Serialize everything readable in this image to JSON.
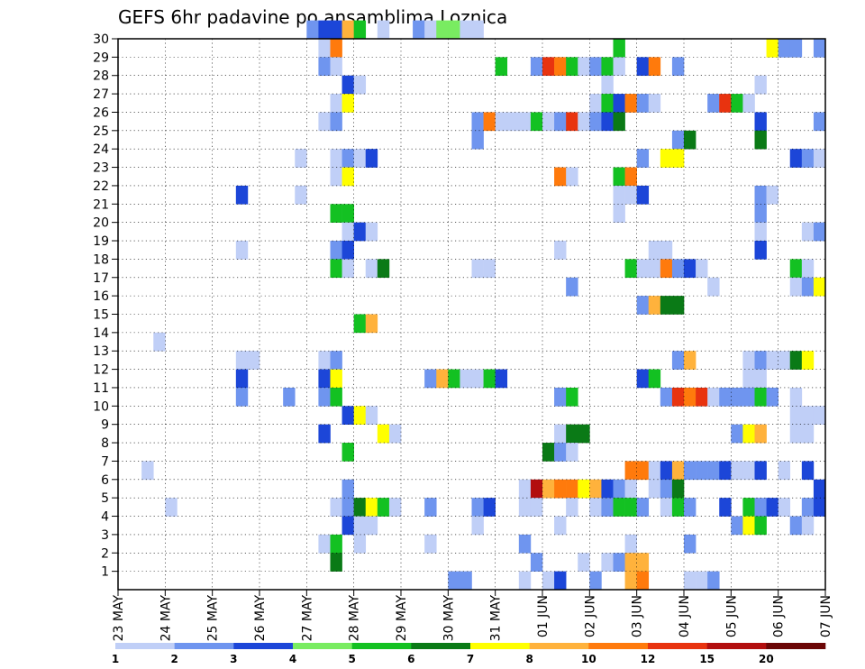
{
  "chart_data": {
    "type": "heatmap",
    "title": "GEFS 6hr padavine po ansamblima Loznica",
    "xlabel": "",
    "ylabel": "",
    "x_tick_labels": [
      "23 MAY",
      "24 MAY",
      "25 MAY",
      "26 MAY",
      "27 MAY",
      "28 MAY",
      "29 MAY",
      "30 MAY",
      "31 MAY",
      "01 JUN",
      "02 JUN",
      "03 JUN",
      "04 JUN",
      "05 JUN",
      "06 JUN",
      "07 JUN"
    ],
    "y_tick_labels": [
      "1",
      "2",
      "3",
      "4",
      "5",
      "6",
      "7",
      "8",
      "9",
      "10",
      "11",
      "12",
      "13",
      "14",
      "15",
      "16",
      "17",
      "18",
      "19",
      "20",
      "21",
      "22",
      "23",
      "24",
      "25",
      "26",
      "27",
      "28",
      "29",
      "30"
    ],
    "xlim": [
      0,
      60
    ],
    "ylim": [
      0,
      30
    ],
    "x_unit": "6-hour steps from 23 MAY 00Z",
    "grid": true,
    "legend": {
      "placement": "bottom",
      "labels": [
        "1",
        "2",
        "3",
        "4",
        "5",
        "6",
        "7",
        "8",
        "10",
        "12",
        "15",
        "20"
      ],
      "colors": [
        "#c0cff7",
        "#6f95ef",
        "#1c46d8",
        "#79ec61",
        "#13c122",
        "#0a7a16",
        "#ffff00",
        "#ffb23c",
        "#ff7a0c",
        "#e8330f",
        "#b20e0e",
        "#6b0606"
      ]
    },
    "cells": [
      [
        16,
        30,
        2
      ],
      [
        17,
        30,
        3
      ],
      [
        18,
        30,
        3
      ],
      [
        19,
        30,
        8
      ],
      [
        20,
        30,
        5
      ],
      [
        22,
        30,
        1
      ],
      [
        25,
        30,
        2
      ],
      [
        26,
        30,
        1
      ],
      [
        27,
        30,
        4
      ],
      [
        28,
        30,
        4
      ],
      [
        29,
        30,
        1
      ],
      [
        30,
        30,
        1
      ],
      [
        17,
        29,
        1
      ],
      [
        18,
        29,
        10
      ],
      [
        42,
        29,
        5
      ],
      [
        55,
        29,
        7
      ],
      [
        56,
        29,
        2
      ],
      [
        57,
        29,
        2
      ],
      [
        59,
        29,
        2
      ],
      [
        17,
        28,
        2
      ],
      [
        18,
        28,
        1
      ],
      [
        32,
        28,
        5
      ],
      [
        35,
        28,
        2
      ],
      [
        36,
        28,
        14
      ],
      [
        37,
        28,
        10
      ],
      [
        38,
        28,
        5
      ],
      [
        39,
        28,
        1
      ],
      [
        40,
        28,
        2
      ],
      [
        41,
        28,
        5
      ],
      [
        42,
        28,
        1
      ],
      [
        44,
        28,
        3
      ],
      [
        45,
        28,
        10
      ],
      [
        47,
        28,
        2
      ],
      [
        19,
        27,
        3
      ],
      [
        20,
        27,
        1
      ],
      [
        41,
        27,
        1
      ],
      [
        54,
        27,
        1
      ],
      [
        18,
        26,
        1
      ],
      [
        19,
        26,
        7
      ],
      [
        40,
        26,
        1
      ],
      [
        41,
        26,
        5
      ],
      [
        42,
        26,
        3
      ],
      [
        43,
        26,
        10
      ],
      [
        44,
        26,
        2
      ],
      [
        45,
        26,
        1
      ],
      [
        50,
        26,
        2
      ],
      [
        51,
        26,
        12
      ],
      [
        52,
        26,
        5
      ],
      [
        53,
        26,
        1
      ],
      [
        17,
        25,
        1
      ],
      [
        18,
        25,
        2
      ],
      [
        30,
        25,
        2
      ],
      [
        31,
        25,
        10
      ],
      [
        32,
        25,
        1
      ],
      [
        33,
        25,
        1
      ],
      [
        34,
        25,
        1
      ],
      [
        35,
        25,
        5
      ],
      [
        36,
        25,
        1
      ],
      [
        37,
        25,
        2
      ],
      [
        38,
        25,
        12
      ],
      [
        39,
        25,
        1
      ],
      [
        40,
        25,
        2
      ],
      [
        41,
        25,
        3
      ],
      [
        42,
        25,
        6
      ],
      [
        54,
        25,
        3
      ],
      [
        59,
        25,
        2
      ],
      [
        30,
        24,
        2
      ],
      [
        47,
        24,
        2
      ],
      [
        48,
        24,
        6
      ],
      [
        54,
        24,
        6
      ],
      [
        15,
        23,
        1
      ],
      [
        18,
        23,
        1
      ],
      [
        19,
        23,
        2
      ],
      [
        20,
        23,
        1
      ],
      [
        21,
        23,
        3
      ],
      [
        44,
        23,
        2
      ],
      [
        46,
        23,
        7
      ],
      [
        47,
        23,
        7
      ],
      [
        57,
        23,
        3
      ],
      [
        58,
        23,
        2
      ],
      [
        59,
        23,
        1
      ],
      [
        18,
        22,
        1
      ],
      [
        19,
        22,
        7
      ],
      [
        37,
        22,
        10
      ],
      [
        38,
        22,
        1
      ],
      [
        42,
        22,
        5
      ],
      [
        43,
        22,
        10
      ],
      [
        10,
        21,
        3
      ],
      [
        15,
        21,
        1
      ],
      [
        42,
        21,
        1
      ],
      [
        43,
        21,
        1
      ],
      [
        44,
        21,
        3
      ],
      [
        54,
        21,
        2
      ],
      [
        55,
        21,
        1
      ],
      [
        18,
        20,
        5
      ],
      [
        19,
        20,
        5
      ],
      [
        42,
        20,
        1
      ],
      [
        54,
        20,
        2
      ],
      [
        19,
        19,
        1
      ],
      [
        20,
        19,
        3
      ],
      [
        21,
        19,
        1
      ],
      [
        54,
        19,
        1
      ],
      [
        58,
        19,
        1
      ],
      [
        59,
        19,
        2
      ],
      [
        10,
        18,
        1
      ],
      [
        18,
        18,
        2
      ],
      [
        19,
        18,
        3
      ],
      [
        37,
        18,
        1
      ],
      [
        45,
        18,
        1
      ],
      [
        46,
        18,
        1
      ],
      [
        54,
        18,
        3
      ],
      [
        18,
        17,
        5
      ],
      [
        19,
        17,
        1
      ],
      [
        21,
        17,
        1
      ],
      [
        22,
        17,
        6
      ],
      [
        30,
        17,
        1
      ],
      [
        31,
        17,
        1
      ],
      [
        43,
        17,
        5
      ],
      [
        44,
        17,
        1
      ],
      [
        45,
        17,
        1
      ],
      [
        46,
        17,
        10
      ],
      [
        47,
        17,
        2
      ],
      [
        48,
        17,
        3
      ],
      [
        49,
        17,
        1
      ],
      [
        57,
        17,
        5
      ],
      [
        58,
        17,
        1
      ],
      [
        38,
        16,
        2
      ],
      [
        50,
        16,
        1
      ],
      [
        57,
        16,
        1
      ],
      [
        58,
        16,
        2
      ],
      [
        59,
        16,
        7
      ],
      [
        44,
        15,
        2
      ],
      [
        45,
        15,
        8
      ],
      [
        46,
        15,
        6
      ],
      [
        47,
        15,
        6
      ],
      [
        20,
        14,
        5
      ],
      [
        21,
        14,
        8
      ],
      [
        3,
        13,
        1
      ],
      [
        10,
        12,
        1
      ],
      [
        11,
        12,
        1
      ],
      [
        17,
        12,
        1
      ],
      [
        18,
        12,
        2
      ],
      [
        47,
        12,
        2
      ],
      [
        48,
        12,
        8
      ],
      [
        53,
        12,
        1
      ],
      [
        54,
        12,
        2
      ],
      [
        55,
        12,
        1
      ],
      [
        56,
        12,
        1
      ],
      [
        57,
        12,
        6
      ],
      [
        58,
        12,
        7
      ],
      [
        10,
        11,
        3
      ],
      [
        17,
        11,
        3
      ],
      [
        18,
        11,
        7
      ],
      [
        26,
        11,
        2
      ],
      [
        27,
        11,
        8
      ],
      [
        28,
        11,
        5
      ],
      [
        29,
        11,
        1
      ],
      [
        30,
        11,
        1
      ],
      [
        31,
        11,
        5
      ],
      [
        32,
        11,
        3
      ],
      [
        44,
        11,
        3
      ],
      [
        45,
        11,
        5
      ],
      [
        53,
        11,
        1
      ],
      [
        54,
        11,
        1
      ],
      [
        10,
        10,
        2
      ],
      [
        14,
        10,
        2
      ],
      [
        17,
        10,
        2
      ],
      [
        18,
        10,
        5
      ],
      [
        37,
        10,
        2
      ],
      [
        38,
        10,
        5
      ],
      [
        46,
        10,
        2
      ],
      [
        47,
        10,
        14
      ],
      [
        48,
        10,
        10
      ],
      [
        49,
        10,
        12
      ],
      [
        50,
        10,
        1
      ],
      [
        51,
        10,
        2
      ],
      [
        52,
        10,
        2
      ],
      [
        53,
        10,
        2
      ],
      [
        54,
        10,
        5
      ],
      [
        55,
        10,
        2
      ],
      [
        57,
        10,
        1
      ],
      [
        19,
        9,
        3
      ],
      [
        20,
        9,
        7
      ],
      [
        21,
        9,
        1
      ],
      [
        57,
        9,
        1
      ],
      [
        58,
        9,
        1
      ],
      [
        59,
        9,
        1
      ],
      [
        17,
        8,
        3
      ],
      [
        22,
        8,
        7
      ],
      [
        23,
        8,
        1
      ],
      [
        37,
        8,
        1
      ],
      [
        38,
        8,
        6
      ],
      [
        39,
        8,
        6
      ],
      [
        52,
        8,
        2
      ],
      [
        53,
        8,
        7
      ],
      [
        54,
        8,
        8
      ],
      [
        57,
        8,
        1
      ],
      [
        58,
        8,
        1
      ],
      [
        19,
        7,
        5
      ],
      [
        36,
        7,
        6
      ],
      [
        37,
        7,
        2
      ],
      [
        38,
        7,
        1
      ],
      [
        2,
        6,
        1
      ],
      [
        43,
        6,
        10
      ],
      [
        44,
        6,
        10
      ],
      [
        45,
        6,
        1
      ],
      [
        46,
        6,
        3
      ],
      [
        47,
        6,
        8
      ],
      [
        48,
        6,
        2
      ],
      [
        49,
        6,
        2
      ],
      [
        50,
        6,
        2
      ],
      [
        51,
        6,
        3
      ],
      [
        52,
        6,
        1
      ],
      [
        53,
        6,
        1
      ],
      [
        54,
        6,
        3
      ],
      [
        56,
        6,
        1
      ],
      [
        58,
        6,
        3
      ],
      [
        19,
        5,
        2
      ],
      [
        34,
        5,
        1
      ],
      [
        35,
        5,
        15
      ],
      [
        36,
        5,
        8
      ],
      [
        37,
        5,
        10
      ],
      [
        38,
        5,
        10
      ],
      [
        39,
        5,
        7
      ],
      [
        40,
        5,
        8
      ],
      [
        41,
        5,
        3
      ],
      [
        42,
        5,
        2
      ],
      [
        43,
        5,
        1
      ],
      [
        45,
        5,
        1
      ],
      [
        46,
        5,
        2
      ],
      [
        47,
        5,
        6
      ],
      [
        59,
        5,
        3
      ],
      [
        4,
        4,
        1
      ],
      [
        18,
        4,
        1
      ],
      [
        19,
        4,
        2
      ],
      [
        20,
        4,
        6
      ],
      [
        21,
        4,
        7
      ],
      [
        22,
        4,
        5
      ],
      [
        23,
        4,
        1
      ],
      [
        26,
        4,
        2
      ],
      [
        30,
        4,
        2
      ],
      [
        31,
        4,
        3
      ],
      [
        34,
        4,
        1
      ],
      [
        35,
        4,
        1
      ],
      [
        38,
        4,
        1
      ],
      [
        40,
        4,
        1
      ],
      [
        41,
        4,
        2
      ],
      [
        42,
        4,
        5
      ],
      [
        43,
        4,
        5
      ],
      [
        44,
        4,
        2
      ],
      [
        46,
        4,
        1
      ],
      [
        47,
        4,
        5
      ],
      [
        48,
        4,
        2
      ],
      [
        51,
        4,
        3
      ],
      [
        53,
        4,
        5
      ],
      [
        54,
        4,
        2
      ],
      [
        55,
        4,
        3
      ],
      [
        56,
        4,
        1
      ],
      [
        58,
        4,
        2
      ],
      [
        59,
        4,
        3
      ],
      [
        19,
        3,
        3
      ],
      [
        20,
        3,
        1
      ],
      [
        21,
        3,
        1
      ],
      [
        30,
        3,
        1
      ],
      [
        37,
        3,
        1
      ],
      [
        52,
        3,
        2
      ],
      [
        53,
        3,
        7
      ],
      [
        54,
        3,
        5
      ],
      [
        57,
        3,
        2
      ],
      [
        58,
        3,
        1
      ],
      [
        17,
        2,
        1
      ],
      [
        18,
        2,
        5
      ],
      [
        20,
        2,
        1
      ],
      [
        26,
        2,
        1
      ],
      [
        34,
        2,
        2
      ],
      [
        43,
        2,
        1
      ],
      [
        48,
        2,
        2
      ],
      [
        18,
        1,
        6
      ],
      [
        35,
        1,
        2
      ],
      [
        39,
        1,
        1
      ],
      [
        41,
        1,
        1
      ],
      [
        42,
        1,
        2
      ],
      [
        43,
        1,
        8
      ],
      [
        44,
        1,
        8
      ],
      [
        28,
        0,
        2
      ],
      [
        29,
        0,
        2
      ],
      [
        34,
        0,
        1
      ],
      [
        36,
        0,
        1
      ],
      [
        37,
        0,
        3
      ],
      [
        40,
        0,
        2
      ],
      [
        43,
        0,
        8
      ],
      [
        44,
        0,
        10
      ],
      [
        48,
        0,
        1
      ],
      [
        49,
        0,
        1
      ],
      [
        50,
        0,
        2
      ]
    ]
  }
}
